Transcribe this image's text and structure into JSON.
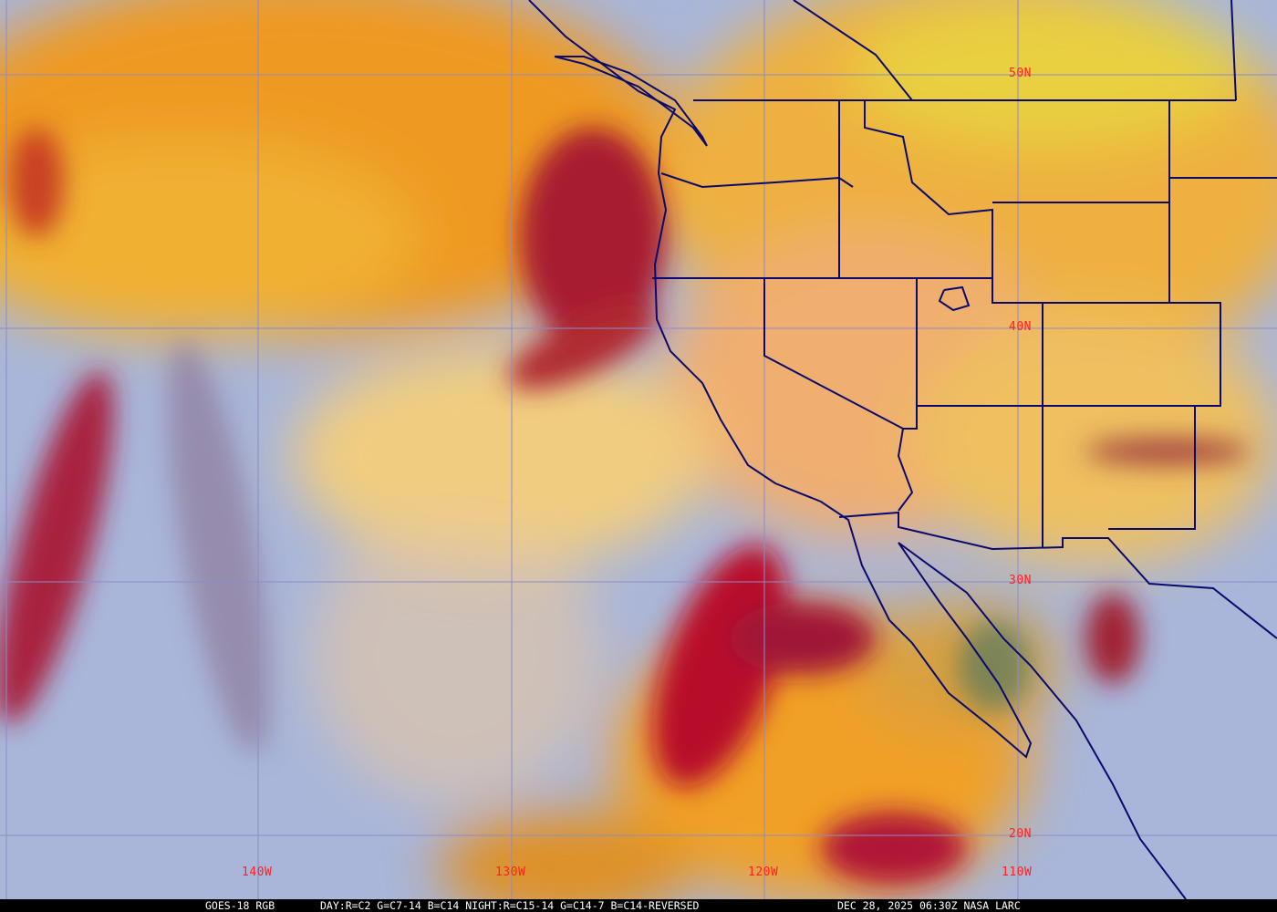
{
  "footer": {
    "satellite": "GOES-18 RGB",
    "recipe": "DAY:R=C2 G=C7-14 B=C14 NIGHT:R=C15-14 G=C14-7 B=C14-REVERSED",
    "timestamp": "DEC 28, 2025 06:30Z NASA LARC"
  },
  "latitude_labels": [
    "50N",
    "40N",
    "30N",
    "20N"
  ],
  "longitude_labels": [
    "140W",
    "130W",
    "120W",
    "110W"
  ],
  "colors": {
    "label": "#ff2020",
    "boundaries": "#0a0a6e",
    "grid": "#8c8cc8",
    "clear_ocean": "#a9b6da",
    "high_cloud": "#f2a020",
    "thick_cloud": "#b01838"
  }
}
